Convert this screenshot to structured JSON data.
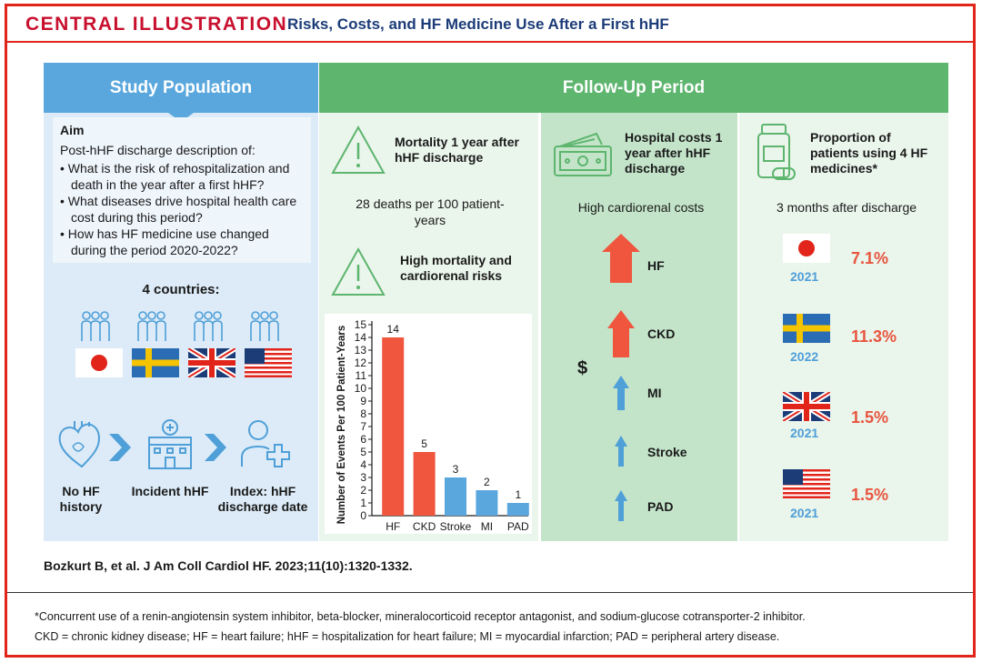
{
  "header": {
    "label": "CENTRAL ILLUSTRATION",
    "title": "Risks, Costs, and HF Medicine Use After a First hHF"
  },
  "study": {
    "band": "Study Population",
    "aim_title": "Aim",
    "aim_intro": "Post-hHF discharge description of:",
    "aims": [
      "What is the risk of rehospitalization and death in the year after a first hHF?",
      "What diseases drive hospital health care cost during this period?",
      "How has HF medicine use changed during the period 2020-2022?"
    ],
    "countries_label": "4 countries:",
    "steps": [
      "No HF history",
      "Incident hHF",
      "Index: hHF discharge date"
    ]
  },
  "followup": {
    "band": "Follow-Up Period",
    "mortality_heading": "Mortality 1 year after hHF discharge",
    "mortality_value": "28 deaths per 100 patient-years",
    "risk_heading": "High mortality and cardiorenal risks",
    "costs_heading": "Hospital costs 1 year after hHF discharge",
    "costs_sub": "High cardiorenal costs",
    "dollar": "$",
    "cost_items": [
      "HF",
      "CKD",
      "MI",
      "Stroke",
      "PAD"
    ],
    "meds_heading": "Proportion of patients using 4 HF medicines*",
    "meds_sub": "3 months after discharge",
    "meds": [
      {
        "country": "Japan",
        "year": "2021",
        "pct": "7.1%"
      },
      {
        "country": "Sweden",
        "year": "2022",
        "pct": "11.3%"
      },
      {
        "country": "United Kingdom",
        "year": "2021",
        "pct": "1.5%"
      },
      {
        "country": "United States",
        "year": "2021",
        "pct": "1.5%"
      }
    ]
  },
  "chart_data": {
    "type": "bar",
    "categories": [
      "HF",
      "CKD",
      "Stroke",
      "MI",
      "PAD"
    ],
    "values": [
      14,
      5,
      3,
      2,
      1
    ],
    "ylabel": "Number of Events Per 100 Patient-Years",
    "ylim": [
      0,
      15
    ],
    "yticks": [
      "0",
      "1",
      "2",
      "3",
      "4",
      "5",
      "6",
      "7",
      "8",
      "9",
      "10",
      "11",
      "12",
      "13",
      "14",
      "15"
    ],
    "colors": [
      "#f0553e",
      "#f0553e",
      "#5aa7dd",
      "#5aa7dd",
      "#5aa7dd"
    ],
    "grid": false
  },
  "citation": "Bozkurt B, et al. J Am Coll Cardiol HF. 2023;11(10):1320-1332.",
  "footnotes": [
    "*Concurrent use of a renin-angiotensin system inhibitor, beta-blocker, mineralocorticoid receptor antagonist, and sodium-glucose cotransporter-2 inhibitor.",
    "CKD = chronic kidney disease; HF = heart failure; hHF = hospitalization for heart failure; MI = myocardial infarction; PAD = peripheral artery disease."
  ],
  "colors": {
    "red": "#e1251b",
    "navy": "#1c3c78",
    "blue": "#5aa7dd",
    "green": "#5db56e",
    "orange": "#f0553e"
  }
}
